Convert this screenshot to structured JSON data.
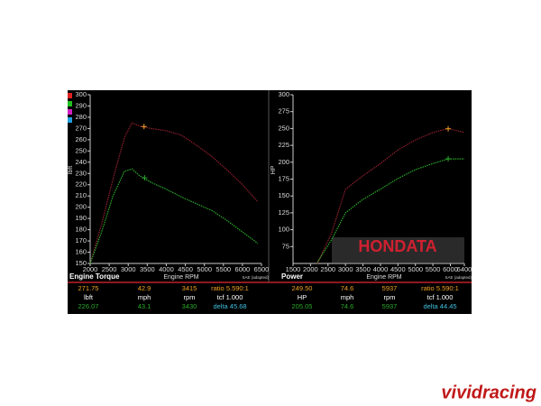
{
  "chart_data": [
    {
      "type": "line",
      "title": "Engine Torque",
      "xlabel": "Engine RPM",
      "ylabel": "lbft",
      "note": "SAE (adapted)",
      "xlim": [
        2000,
        6500
      ],
      "xticks": [
        2000,
        2500,
        3000,
        3500,
        4000,
        4500,
        5000,
        5500,
        6000,
        6500
      ],
      "ylim": [
        150,
        300
      ],
      "yticks": [
        150,
        160,
        170,
        180,
        190,
        200,
        210,
        220,
        230,
        240,
        250,
        260,
        270,
        280,
        290,
        300
      ],
      "grid": false,
      "series": [
        {
          "color": "#8e1f2c",
          "x": [
            2000,
            2300,
            2600,
            2900,
            3100,
            3300,
            3600,
            4000,
            4400,
            4800,
            5200,
            5600,
            6000,
            6400
          ],
          "values": [
            150,
            185,
            225,
            262,
            275,
            272,
            270,
            268,
            264,
            255,
            245,
            233,
            220,
            205
          ]
        },
        {
          "color": "#2aa82a",
          "x": [
            2000,
            2300,
            2600,
            2900,
            3100,
            3300,
            3600,
            4000,
            4400,
            4800,
            5200,
            5600,
            6000,
            6400
          ],
          "values": [
            150,
            178,
            210,
            232,
            234,
            228,
            222,
            216,
            209,
            203,
            197,
            188,
            178,
            168
          ]
        }
      ],
      "cursors": [
        {
          "x": 3415,
          "y": 271.75,
          "color": "#f0a020"
        },
        {
          "x": 3430,
          "y": 226.07,
          "color": "#2aa82a"
        }
      ]
    },
    {
      "type": "line",
      "title": "Power",
      "xlabel": "Engine RPM",
      "ylabel": "HP",
      "note": "SAE (adapted)",
      "xlim": [
        1500,
        6400
      ],
      "xticks": [
        1500,
        2000,
        2500,
        3000,
        3500,
        4000,
        4500,
        5000,
        5500,
        6000,
        6400
      ],
      "ylim": [
        50,
        300
      ],
      "yticks": [
        75,
        100,
        125,
        150,
        175,
        200,
        225,
        250,
        275,
        300
      ],
      "grid": false,
      "series": [
        {
          "color": "#8e1f2c",
          "x": [
            2200,
            2600,
            3000,
            3500,
            4000,
            4500,
            5000,
            5500,
            5937,
            6400
          ],
          "values": [
            50,
            95,
            160,
            180,
            198,
            218,
            233,
            244,
            250,
            244
          ]
        },
        {
          "color": "#2aa82a",
          "x": [
            2200,
            2600,
            3000,
            3500,
            4000,
            4500,
            5000,
            5500,
            5937,
            6400
          ],
          "values": [
            52,
            85,
            125,
            145,
            160,
            176,
            189,
            198,
            205,
            205
          ]
        }
      ],
      "cursors": [
        {
          "x": 5937,
          "y": 249.5,
          "color": "#f0a020"
        },
        {
          "x": 5937,
          "y": 205.05,
          "color": "#2aa82a"
        }
      ]
    }
  ],
  "readouts": [
    [
      [
        "271.75",
        "42.9",
        "3415",
        "ratio  5.590:1"
      ],
      [
        "lbft",
        "mph",
        "rpm",
        "tcf  1.000"
      ],
      [
        "226.07",
        "43.1",
        "3430",
        "delta  45.68"
      ]
    ],
    [
      [
        "249.50",
        "74.6",
        "5937",
        "ratio  5.590:1"
      ],
      [
        "HP",
        "mph",
        "rpm",
        "tcf  1.000"
      ],
      [
        "205.05",
        "74.6",
        "5937",
        "delta  44.45"
      ]
    ]
  ],
  "logo": "HONDATA",
  "watermark": "vividracing"
}
